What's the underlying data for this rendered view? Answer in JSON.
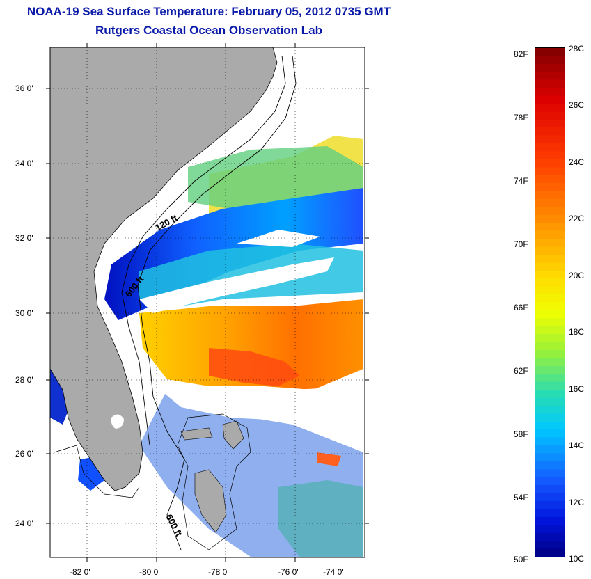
{
  "header": {
    "title_line1": "NOAA-19 Sea Surface Temperature:  February 05, 2012 0735 GMT",
    "title_line2": "Rutgers Coastal Ocean Observation Lab"
  },
  "map": {
    "lon_ticks": [
      "-82 0'",
      "-80 0'",
      "-78 0'",
      "-76 0'",
      "-74 0'"
    ],
    "lat_ticks": [
      "36 0'",
      "34 0'",
      "32 0'",
      "30 0'",
      "28 0'",
      "26 0'",
      "24 0'"
    ],
    "isobath_labels": [
      "120 ft",
      "600 ft",
      "600 ft"
    ],
    "colors": {
      "land": "#aaaaaa",
      "ocean_no_data": "#ffffff",
      "frame": "#000000"
    }
  },
  "colorbar": {
    "fahrenheit_labels": [
      "82F",
      "78F",
      "74F",
      "70F",
      "66F",
      "62F",
      "58F",
      "54F",
      "50F"
    ],
    "celsius_labels": [
      "28C",
      "26C",
      "24C",
      "22C",
      "20C",
      "18C",
      "16C",
      "14C",
      "12C",
      "10C"
    ],
    "scale": "jet",
    "min_c": 10,
    "max_c": 28
  }
}
